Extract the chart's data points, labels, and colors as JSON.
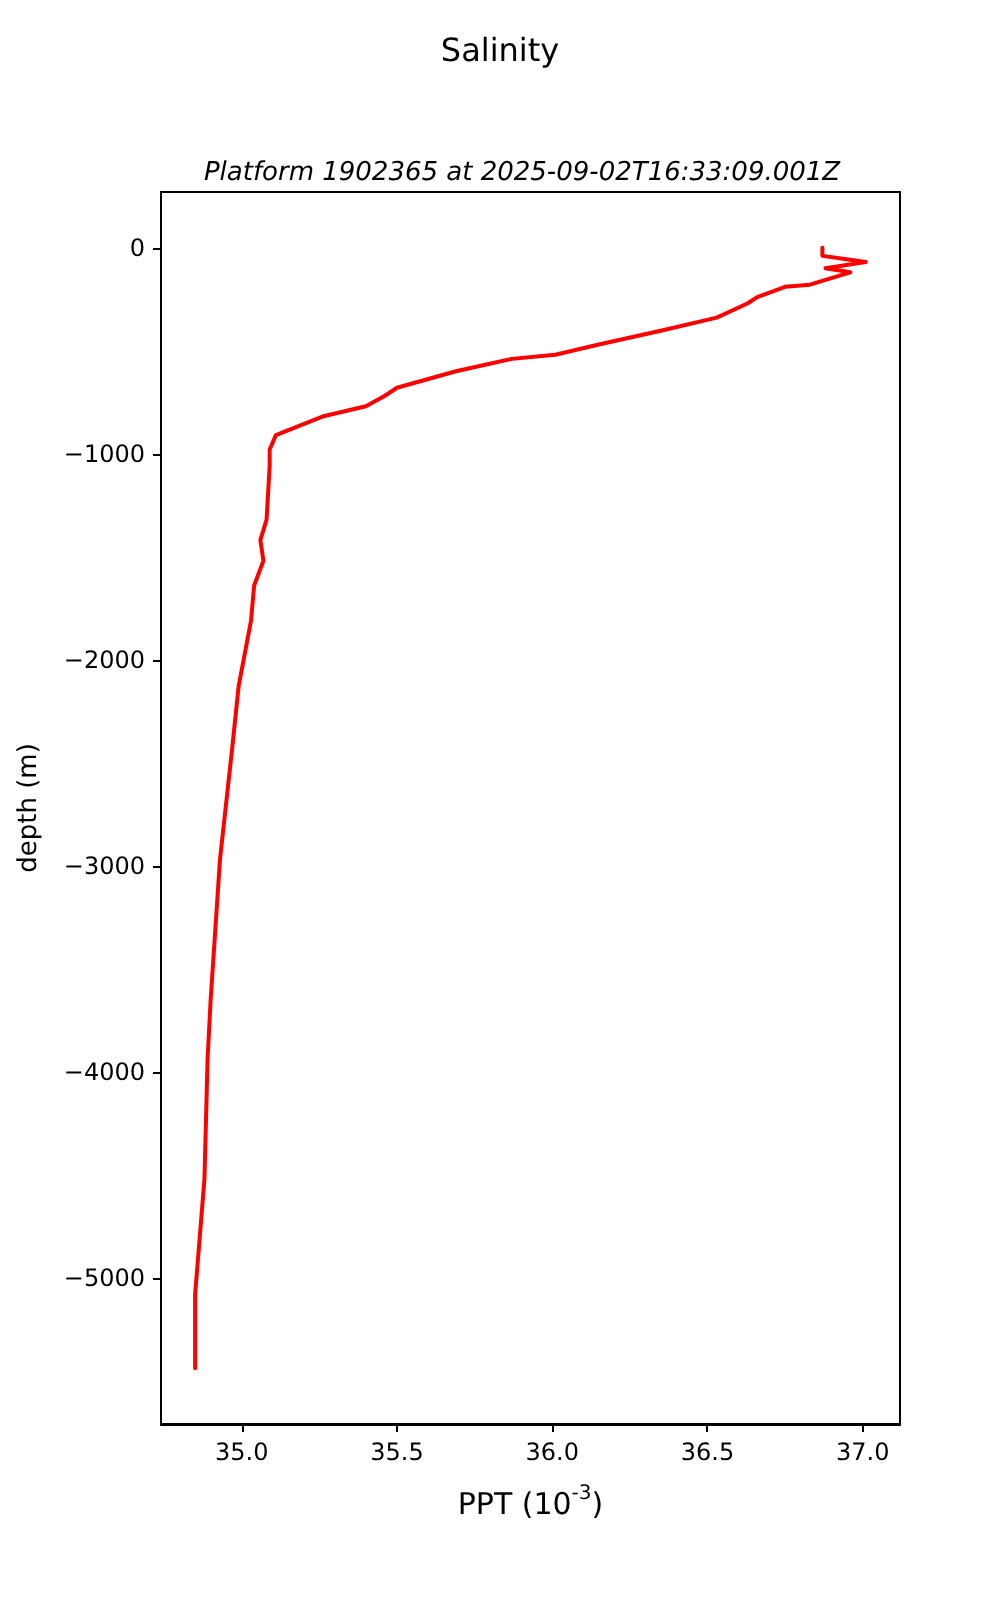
{
  "chart_data": {
    "type": "line",
    "title": "Salinity",
    "subtitle": "Platform 1902365 at 2025-09-02T16:33:09.001Z",
    "xlabel": "PPT (10$^{-3}$)",
    "ylabel": "depth (m)",
    "xlim": [
      34.74,
      37.12
    ],
    "ylim": [
      -5710,
      270
    ],
    "xticks": [
      {
        "value": 35,
        "label": "35.0"
      },
      {
        "value": 35.5,
        "label": "35.5"
      },
      {
        "value": 36,
        "label": "36.0"
      },
      {
        "value": 36.5,
        "label": "36.5"
      },
      {
        "value": 37,
        "label": "37.0"
      }
    ],
    "yticks": [
      0,
      {
        "value": -1000,
        "label": "−1000"
      },
      {
        "value": -2000,
        "label": "−2000"
      },
      {
        "value": -3000,
        "label": "−3000"
      },
      {
        "value": -4000,
        "label": "−4000"
      },
      {
        "value": -5000,
        "label": "−5000"
      }
    ],
    "grid": false,
    "marker": "none",
    "line_style": "solid",
    "series": [
      {
        "color": "#ff0000",
        "x": [
          36.87,
          36.87,
          37.01,
          36.88,
          36.96,
          36.83,
          36.75,
          36.66,
          36.63,
          36.53,
          36.36,
          36.15,
          36.01,
          35.87,
          35.69,
          35.5,
          35.46,
          35.4,
          35.26,
          35.11,
          35.09,
          35.09,
          35.08,
          35.06,
          35.07,
          35.04,
          35.03,
          34.99,
          34.97,
          34.93,
          34.9,
          34.89,
          34.88,
          34.85,
          34.85
        ],
        "values": [
          0,
          -40,
          -70,
          -100,
          -120,
          -180,
          -190,
          -240,
          -270,
          -340,
          -400,
          -470,
          -520,
          -540,
          -600,
          -680,
          -720,
          -770,
          -820,
          -910,
          -980,
          -1060,
          -1320,
          -1420,
          -1520,
          -1640,
          -1810,
          -2130,
          -2420,
          -2970,
          -3650,
          -3940,
          -4520,
          -5080,
          -5440
        ]
      }
    ]
  }
}
